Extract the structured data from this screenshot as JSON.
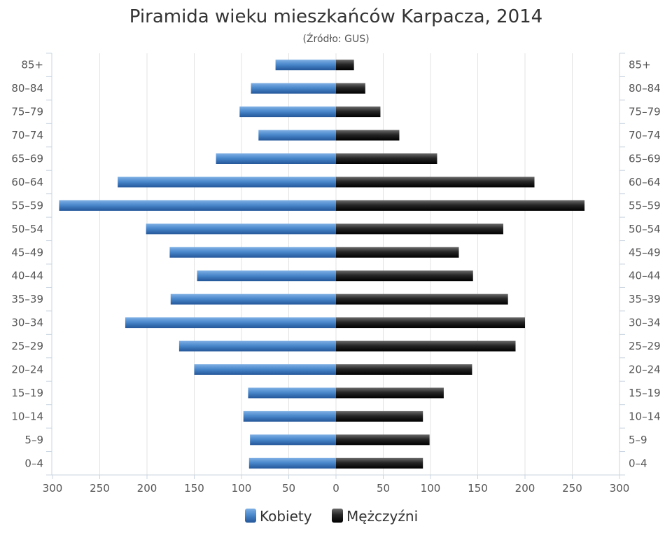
{
  "chart_data": {
    "type": "bar",
    "orientation": "horizontal-pyramid",
    "title": "Piramida wieku mieszkańców Karpacza, 2014",
    "subtitle": "(Źródło: GUS)",
    "categories": [
      "85+",
      "80–84",
      "75–79",
      "70–74",
      "65–69",
      "60–64",
      "55–59",
      "50–54",
      "45–49",
      "40–44",
      "35–39",
      "30–34",
      "25–29",
      "20–24",
      "15–19",
      "10–14",
      "5–9",
      "0–4"
    ],
    "series": [
      {
        "name": "Kobiety",
        "side": "left",
        "color": "#3f7bbf",
        "values": [
          64,
          90,
          102,
          82,
          127,
          231,
          293,
          201,
          176,
          147,
          175,
          223,
          166,
          150,
          93,
          98,
          91,
          92
        ]
      },
      {
        "name": "Mężczyźni",
        "side": "right",
        "color": "#1e1e1e",
        "values": [
          19,
          31,
          47,
          67,
          107,
          210,
          263,
          177,
          130,
          145,
          182,
          200,
          190,
          144,
          114,
          92,
          99,
          92
        ]
      }
    ],
    "xlim": [
      -300,
      300
    ],
    "x_ticks": [
      -300,
      -250,
      -200,
      -150,
      -100,
      -50,
      0,
      50,
      100,
      150,
      200,
      250,
      300
    ],
    "x_tick_labels": [
      "300",
      "250",
      "200",
      "150",
      "100",
      "50",
      "0",
      "50",
      "100",
      "150",
      "200",
      "250",
      "300"
    ],
    "grid": true,
    "legend_position": "bottom-center"
  }
}
